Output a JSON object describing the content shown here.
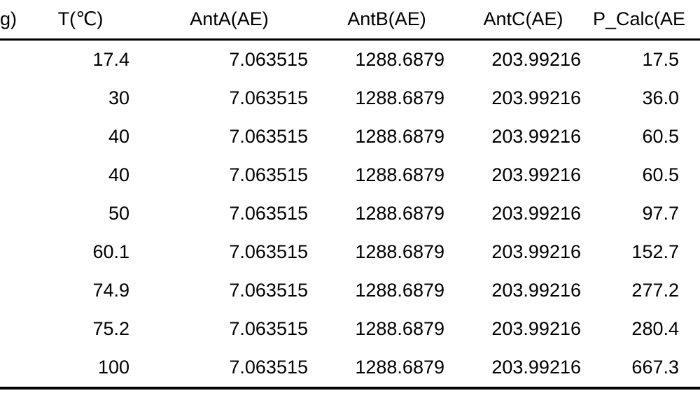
{
  "colors": {
    "background": "#ffffff",
    "text": "#000000",
    "rule": "#000000"
  },
  "table": {
    "columns": [
      {
        "label": "g)"
      },
      {
        "label": "T(℃)"
      },
      {
        "label": "AntA(AE)"
      },
      {
        "label": "AntB(AE)"
      },
      {
        "label": "AntC(AE)"
      },
      {
        "label": "P_Calc(AE"
      }
    ],
    "rows": [
      [
        "",
        "17.4",
        "7.063515",
        "1288.6879",
        "203.99216",
        "17.5"
      ],
      [
        "",
        "30",
        "7.063515",
        "1288.6879",
        "203.99216",
        "36.0"
      ],
      [
        "",
        "40",
        "7.063515",
        "1288.6879",
        "203.99216",
        "60.5"
      ],
      [
        "",
        "40",
        "7.063515",
        "1288.6879",
        "203.99216",
        "60.5"
      ],
      [
        "",
        "50",
        "7.063515",
        "1288.6879",
        "203.99216",
        "97.7"
      ],
      [
        "",
        "60.1",
        "7.063515",
        "1288.6879",
        "203.99216",
        "152.7"
      ],
      [
        "",
        "74.9",
        "7.063515",
        "1288.6879",
        "203.99216",
        "277.2"
      ],
      [
        "",
        "75.2",
        "7.063515",
        "1288.6879",
        "203.99216",
        "280.4"
      ],
      [
        "",
        "100",
        "7.063515",
        "1288.6879",
        "203.99216",
        "667.3"
      ]
    ]
  }
}
